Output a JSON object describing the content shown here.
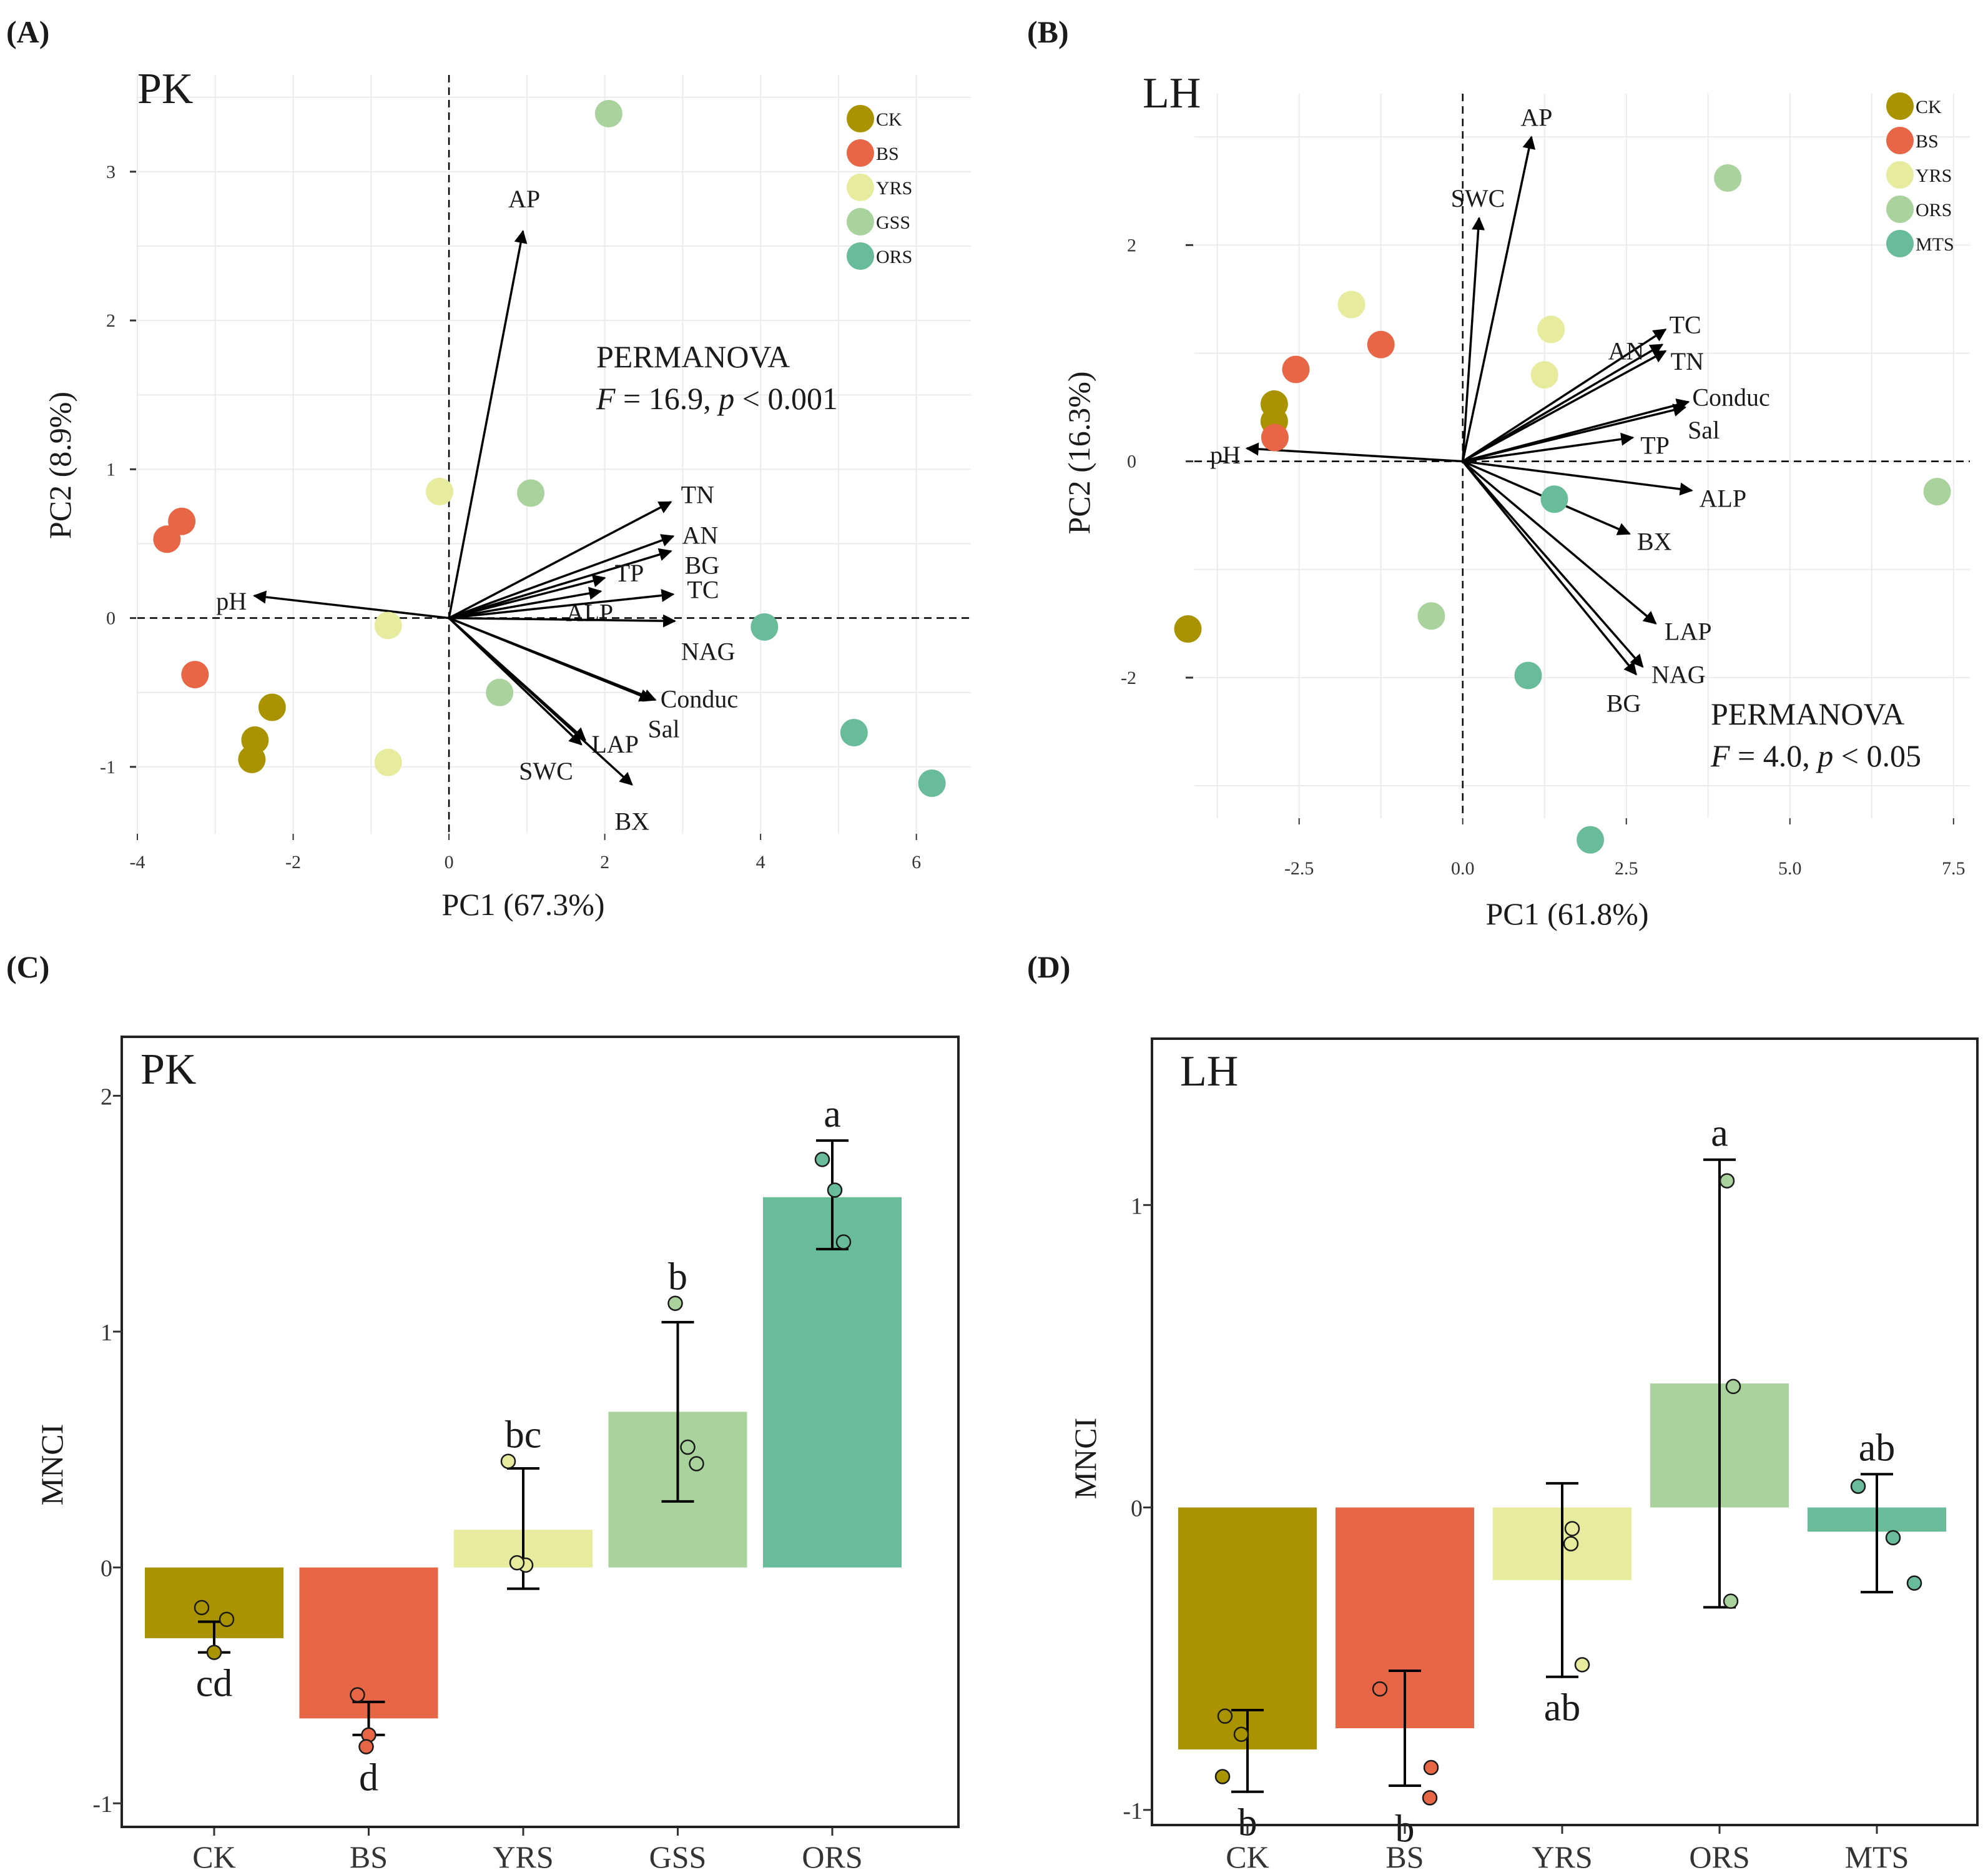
{
  "chart_data": [
    {
      "type": "scatter",
      "panel": "(A)",
      "site": "PK",
      "xlabel": "PC1 (67.3%)",
      "ylabel": "PC2 (8.9%)",
      "xlim": [
        -4.0,
        6.7
      ],
      "ylim": [
        -1.45,
        3.65
      ],
      "xticks": [
        -4,
        -2,
        0,
        2,
        4,
        6
      ],
      "yticks": [
        -1,
        0,
        1,
        2,
        3
      ],
      "grid": true,
      "legend": {
        "position": "top-right",
        "entries": [
          "CK",
          "BS",
          "YRS",
          "GSS",
          "ORS"
        ]
      },
      "colors": {
        "CK": "#a99400",
        "BS": "#e66645",
        "YRS": "#e7eb9d",
        "GSS": "#a9d29c",
        "ORS": "#68bc99"
      },
      "points": [
        {
          "group": "CK",
          "x": -2.27,
          "y": -0.6
        },
        {
          "group": "CK",
          "x": -2.49,
          "y": -0.82
        },
        {
          "group": "CK",
          "x": -2.53,
          "y": -0.95
        },
        {
          "group": "BS",
          "x": -3.43,
          "y": 0.65
        },
        {
          "group": "BS",
          "x": -3.62,
          "y": 0.53
        },
        {
          "group": "BS",
          "x": -3.26,
          "y": -0.38
        },
        {
          "group": "YRS",
          "x": -0.12,
          "y": 0.85
        },
        {
          "group": "YRS",
          "x": -0.78,
          "y": -0.05
        },
        {
          "group": "YRS",
          "x": -0.78,
          "y": -0.97
        },
        {
          "group": "GSS",
          "x": 2.05,
          "y": 3.39
        },
        {
          "group": "GSS",
          "x": 1.05,
          "y": 0.84
        },
        {
          "group": "GSS",
          "x": 0.65,
          "y": -0.5
        },
        {
          "group": "ORS",
          "x": 4.05,
          "y": -0.06
        },
        {
          "group": "ORS",
          "x": 5.2,
          "y": -0.77
        },
        {
          "group": "ORS",
          "x": 6.2,
          "y": -1.11
        }
      ],
      "vectors": [
        {
          "name": "AP",
          "x": 0.95,
          "y": 2.6
        },
        {
          "name": "TN",
          "x": 2.85,
          "y": 0.78
        },
        {
          "name": "AN",
          "x": 2.88,
          "y": 0.55
        },
        {
          "name": "BG",
          "x": 2.85,
          "y": 0.45
        },
        {
          "name": "TP",
          "x": 2.0,
          "y": 0.27
        },
        {
          "name": "ALP",
          "x": 1.95,
          "y": 0.18
        },
        {
          "name": "TC",
          "x": 2.88,
          "y": 0.16
        },
        {
          "name": "NAG",
          "x": 2.9,
          "y": -0.02
        },
        {
          "name": "Conduc",
          "x": 2.65,
          "y": -0.55
        },
        {
          "name": "Sal",
          "x": 2.6,
          "y": -0.55
        },
        {
          "name": "LAP",
          "x": 1.75,
          "y": -0.82
        },
        {
          "name": "SWC",
          "x": 1.7,
          "y": -0.85
        },
        {
          "name": "BX",
          "x": 2.35,
          "y": -1.12
        },
        {
          "name": "pH",
          "x": -2.5,
          "y": 0.15
        }
      ],
      "annotation": {
        "title": "PERMANOVA",
        "F": "F",
        "stat": " = 16.9, ",
        "p": "p",
        "ptext": " < 0.001"
      }
    },
    {
      "type": "scatter",
      "panel": "(B)",
      "site": "LH",
      "xlabel": "PC1 (61.8%)",
      "ylabel": "PC2 (16.3%)",
      "xlim": [
        -4.1,
        7.75
      ],
      "ylim": [
        -3.3,
        3.4
      ],
      "xticks": [
        -2.5,
        0.0,
        2.5,
        5.0,
        7.5
      ],
      "xtick_labels": [
        "-2.5",
        "0.0",
        "2.5",
        "5.0",
        "7.5"
      ],
      "yticks": [
        -2,
        0,
        2
      ],
      "grid": true,
      "legend": {
        "position": "top-right",
        "entries": [
          "CK",
          "BS",
          "YRS",
          "ORS",
          "MTS"
        ]
      },
      "colors": {
        "CK": "#a99400",
        "BS": "#e66645",
        "YRS": "#e7eb9d",
        "ORS": "#a9d29c",
        "MTS": "#68bc99"
      },
      "points": [
        {
          "group": "CK",
          "x": -2.88,
          "y": 0.53
        },
        {
          "group": "CK",
          "x": -2.88,
          "y": 0.37
        },
        {
          "group": "CK",
          "x": -4.2,
          "y": -1.55
        },
        {
          "group": "BS",
          "x": -2.55,
          "y": 0.85
        },
        {
          "group": "BS",
          "x": -1.25,
          "y": 1.08
        },
        {
          "group": "BS",
          "x": -2.87,
          "y": 0.22
        },
        {
          "group": "YRS",
          "x": -1.7,
          "y": 1.45
        },
        {
          "group": "YRS",
          "x": 1.35,
          "y": 1.22
        },
        {
          "group": "YRS",
          "x": 1.25,
          "y": 0.8
        },
        {
          "group": "ORS",
          "x": 4.05,
          "y": 2.62
        },
        {
          "group": "ORS",
          "x": 7.25,
          "y": -0.28
        },
        {
          "group": "ORS",
          "x": -0.48,
          "y": -1.43
        },
        {
          "group": "MTS",
          "x": 1.4,
          "y": -0.35
        },
        {
          "group": "MTS",
          "x": 1.0,
          "y": -1.98
        },
        {
          "group": "MTS",
          "x": 1.95,
          "y": -3.5
        }
      ],
      "vectors": [
        {
          "name": "AP",
          "x": 1.05,
          "y": 3.0
        },
        {
          "name": "SWC",
          "x": 0.25,
          "y": 2.25
        },
        {
          "name": "TC",
          "x": 3.1,
          "y": 1.22
        },
        {
          "name": "AN",
          "x": 3.05,
          "y": 1.08
        },
        {
          "name": "TN",
          "x": 3.1,
          "y": 1.02
        },
        {
          "name": "Conduc",
          "x": 3.45,
          "y": 0.55
        },
        {
          "name": "Sal",
          "x": 3.4,
          "y": 0.5
        },
        {
          "name": "TP",
          "x": 2.6,
          "y": 0.22
        },
        {
          "name": "ALP",
          "x": 3.5,
          "y": -0.27
        },
        {
          "name": "BX",
          "x": 2.55,
          "y": -0.67
        },
        {
          "name": "LAP",
          "x": 2.95,
          "y": -1.5
        },
        {
          "name": "NAG",
          "x": 2.75,
          "y": -1.9
        },
        {
          "name": "BG",
          "x": 2.65,
          "y": -1.97
        },
        {
          "name": "pH",
          "x": -3.3,
          "y": 0.12
        }
      ],
      "annotation": {
        "title": "PERMANOVA",
        "F": "F",
        "stat": " = 4.0, ",
        "p": "p",
        "ptext": " < 0.05"
      }
    },
    {
      "type": "bar",
      "panel": "(C)",
      "site": "PK",
      "ylabel": "MNCI",
      "xlabel": "",
      "ylim": [
        -1.1,
        2.25
      ],
      "yticks": [
        -1,
        0,
        1,
        2
      ],
      "grid": false,
      "categories": [
        "CK",
        "BS",
        "YRS",
        "GSS",
        "ORS"
      ],
      "colors": [
        "#a99400",
        "#e66645",
        "#e7eb9d",
        "#a9d29c",
        "#68bc99"
      ],
      "values": [
        -0.3,
        -0.64,
        0.16,
        0.66,
        1.57
      ],
      "error_low": [
        -0.36,
        -0.71,
        -0.09,
        0.28,
        1.35
      ],
      "error_high": [
        -0.23,
        -0.57,
        0.42,
        1.04,
        1.81
      ],
      "replicates": [
        [
          -0.17,
          -0.22,
          -0.36
        ],
        [
          -0.54,
          -0.71,
          -0.76
        ],
        [
          0.45,
          0.01,
          0.02
        ],
        [
          1.12,
          0.51,
          0.44
        ],
        [
          1.73,
          1.6,
          1.38
        ]
      ],
      "letters": [
        "cd",
        "d",
        "bc",
        "b",
        "a"
      ],
      "letter_side": [
        "below",
        "below",
        "above",
        "above",
        "above"
      ]
    },
    {
      "type": "bar",
      "panel": "(D)",
      "site": "LH",
      "ylabel": "MNCI",
      "xlabel": "",
      "ylim": [
        -1.05,
        1.55
      ],
      "yticks": [
        -1,
        0,
        1
      ],
      "grid": false,
      "categories": [
        "CK",
        "BS",
        "YRS",
        "ORS",
        "MTS"
      ],
      "colors": [
        "#a99400",
        "#e66645",
        "#e7eb9d",
        "#a9d29c",
        "#68bc99"
      ],
      "values": [
        -0.8,
        -0.73,
        -0.24,
        0.41,
        -0.08
      ],
      "error_low": [
        -0.94,
        -0.92,
        -0.56,
        -0.33,
        -0.28
      ],
      "error_high": [
        -0.67,
        -0.54,
        0.08,
        1.15,
        0.11
      ],
      "replicates": [
        [
          -0.69,
          -0.75,
          -0.89
        ],
        [
          -0.6,
          -0.86,
          -0.96
        ],
        [
          -0.07,
          -0.12,
          -0.52
        ],
        [
          1.08,
          0.4,
          -0.31
        ],
        [
          0.07,
          -0.1,
          -0.25
        ]
      ],
      "letters": [
        "b",
        "b",
        "ab",
        "a",
        "ab"
      ],
      "letter_side": [
        "below",
        "below",
        "below",
        "above",
        "above"
      ]
    }
  ]
}
